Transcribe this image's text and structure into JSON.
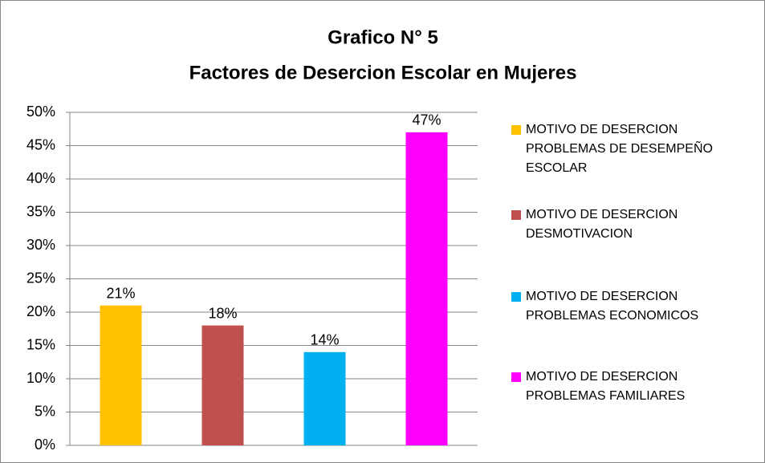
{
  "chart_data": {
    "type": "bar",
    "title": [
      "Grafico N° 5",
      "Factores de Desercion Escolar en Mujeres"
    ],
    "categories": [
      null
    ],
    "series": [
      {
        "name": "MOTIVO DE DESERCION PROBLEMAS DE DESEMPEÑO ESCOLAR",
        "color": "#ffc000",
        "values": [
          21
        ],
        "value_labels": [
          "21%"
        ]
      },
      {
        "name": "MOTIVO DE DESERCION DESMOTIVACION",
        "color": "#c0504d",
        "values": [
          18
        ],
        "value_labels": [
          "18%"
        ]
      },
      {
        "name": "MOTIVO DE DESERCION PROBLEMAS ECONOMICOS",
        "color": "#00b0f0",
        "values": [
          14
        ],
        "value_labels": [
          "14%"
        ]
      },
      {
        "name": "MOTIVO DE DESERCION PROBLEMAS FAMILIARES",
        "color": "#ff00ff",
        "values": [
          47
        ],
        "value_labels": [
          "47%"
        ]
      }
    ],
    "ylim": [
      0,
      50
    ],
    "yticks": [
      {
        "value": 0,
        "label": "0%"
      },
      {
        "value": 5,
        "label": "5%"
      },
      {
        "value": 10,
        "label": "10%"
      },
      {
        "value": 15,
        "label": "15%"
      },
      {
        "value": 20,
        "label": "20%"
      },
      {
        "value": 25,
        "label": "25%"
      },
      {
        "value": 30,
        "label": "30%"
      },
      {
        "value": 35,
        "label": "35%"
      },
      {
        "value": 40,
        "label": "40%"
      },
      {
        "value": 45,
        "label": "45%"
      },
      {
        "value": 50,
        "label": "50%"
      }
    ],
    "grid": true,
    "legend": "right"
  }
}
